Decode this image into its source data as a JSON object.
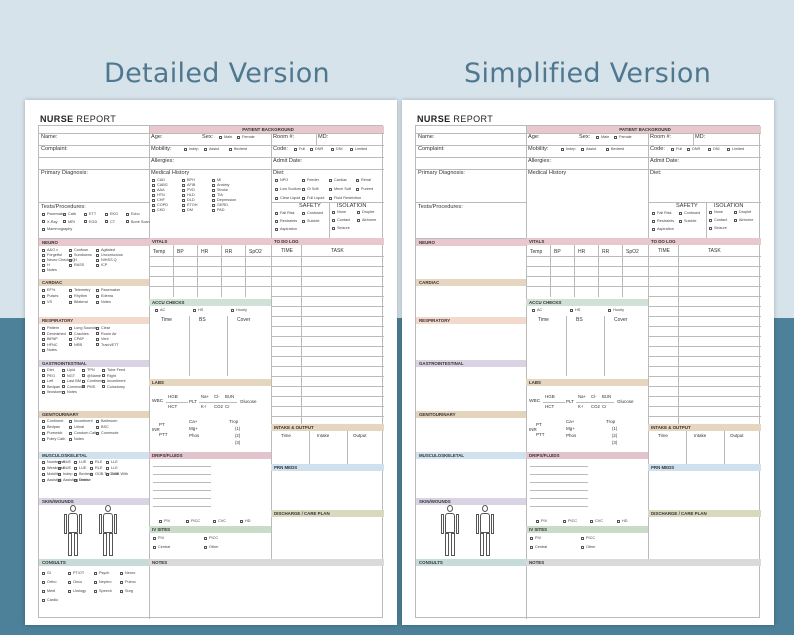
{
  "headings": {
    "detailed": "Detailed Version",
    "simplified": "Simplified Version"
  },
  "report": {
    "title_a": "NURSE",
    "title_b": "REPORT"
  },
  "bands": {
    "patient_background": "PATIENT BACKGROUND",
    "neuro": "NEURO",
    "cardiac": "CARDIAC",
    "respiratory": "RESPIRATORY",
    "gastrointestinal": "GASTROINTESTINAL",
    "genitourinary": "GENITOURINARY",
    "musculoskeletal": "MUSCULOSKELETAL",
    "skin_wounds": "SKIN/WOUNDS",
    "consults": "CONSULTS",
    "vitals": "VITALS",
    "to_do_log": "TO DO LOG",
    "accu_checks": "ACCU CHECKS",
    "labs": "LABS",
    "intake_output": "INTAKE & OUTPUT",
    "drips_fluids": "DRIPS/FLUIDS",
    "prn_meds": "PRN MEDS",
    "iv_sites": "IV SITES",
    "discharge": "DISCHARGE / CARE PLAN",
    "notes": "NOTES"
  },
  "fields": {
    "name": "Name:",
    "age": "Age:",
    "sex": "Sex:",
    "male": "Male",
    "female": "Female",
    "room": "Room #:",
    "md": "MD:",
    "complaint": "Complaint:",
    "mobility": "Mobility:",
    "indep": "Indep",
    "assist": "Assist",
    "bedrest": "Bedrest",
    "code": "Code:",
    "full": "Full",
    "dnr": "DNR",
    "dni": "DNI",
    "limited": "Limited",
    "allergies": "Allergies:",
    "admit_date": "Admit Date:",
    "primary_dx": "Primary Diagnosis:",
    "medical_history": "Medical History",
    "diet": "Diet:",
    "tests": "Tests/Procedures:",
    "safety": "SAFETY",
    "isolation": "ISOLATION"
  },
  "medical_history_items": [
    "CAD",
    "BPH",
    "MI",
    "CABG",
    "AFIB",
    "Anxiety",
    "AAA",
    "PVD",
    "Stroke",
    "HTN",
    "HLD",
    "TIA",
    "CHF",
    "DLD",
    "Depression",
    "COPD",
    "ETOH",
    "GERD",
    "CKD",
    "DM",
    "PAD"
  ],
  "diet_items": [
    "NPO",
    "Feeder",
    "Cardiac",
    "Renal",
    "Low Sodium",
    "Gi Soft",
    "Mech Soft",
    "Pureed",
    "Clear Liquid",
    "Full Liquid",
    "Fluid Restriction"
  ],
  "safety_items": [
    "Fall Risk",
    "Confused",
    "Restraints",
    "Suicide",
    "Aspiration"
  ],
  "isolation_items": [
    "None",
    "Droplet",
    "Contact",
    "Airborne",
    "Seizure"
  ],
  "tests_items": [
    "Pacemaker",
    "Cath",
    "ETT",
    "EKG",
    "Echo",
    "X-Ray",
    "MRI",
    "EGD",
    "CT",
    "Bone Scan",
    "Mammography"
  ],
  "neuro_items": [
    "A&O x",
    "Confuse",
    "Agitated",
    "Forgetful",
    "Sundowns",
    "Unconscious",
    "Neuro Checks Q",
    "H",
    "NIHSS Q",
    "H",
    "RASS",
    "ICP",
    "Notes"
  ],
  "cardiac_items": [
    "EF%",
    "Telemetry",
    "Pacemaker",
    "Pulses",
    "Rhythm",
    "Edema",
    "VS",
    "Bilateral",
    "Notes"
  ],
  "resp_items": [
    "Pattern",
    "Lung Sounds",
    "Clear",
    "Diminished",
    "Crackles",
    "Room Air",
    "BiPAP",
    "CPAP",
    "Vent",
    "HFNC",
    "NRB",
    "Trach/ETT",
    "Notes"
  ],
  "gi_items": [
    "Diet",
    "Lipid",
    "TPN",
    "Tube Feed",
    "PEG",
    "NGT",
    "@Name",
    "Right",
    "Left",
    "Last BM",
    "Continent",
    "Incontinent",
    "Bedpan",
    "Commode",
    "PMS",
    "Colostomy",
    "Ileostomy",
    "Notes"
  ],
  "gu_items": [
    "Continent",
    "Incontinent",
    "Bathroom",
    "Bedpan",
    "Urinal",
    "BSC",
    "Purewick",
    "Condom Cath",
    "Commode",
    "Foley Cath",
    "Notes"
  ],
  "msk_items": [
    "Numbness",
    "RUE",
    "LUE",
    "RLE",
    "LLE",
    "Weakness",
    "RUE",
    "LUE",
    "RLE",
    "LLE",
    "Mobility",
    "Indep",
    "Bedrest",
    "OOB To Chair",
    "OOB With",
    "Assist(s)",
    "Assisting Device",
    "Notes"
  ],
  "consult_items": [
    "GI",
    "PT/OT",
    "Psych",
    "Neuro",
    "Ortho",
    "Onco",
    "Nephro",
    "Pulmo",
    "Medi",
    "Urology",
    "Speech",
    "Surg",
    "Cardio"
  ],
  "vitals_cols": [
    "Temp",
    "BP",
    "HR",
    "RR",
    "SpO2"
  ],
  "todo_cols": [
    "TIME",
    "TASK"
  ],
  "accu_opts": [
    "AC",
    "HS",
    "Hourly"
  ],
  "accu_cols": [
    "Time",
    "BS",
    "Cover"
  ],
  "io_cols": [
    "Time",
    "Intake",
    "Output"
  ],
  "labs": {
    "wbc": "WBC",
    "hgb": "HGB",
    "hct": "HCT",
    "plt": "PLT",
    "na": "Na+",
    "k": "K+",
    "cl": "Cl-",
    "co2": "CO2",
    "bun": "BUN",
    "cr": "Cr",
    "glucose": "Glucose",
    "pt": "PT",
    "inr": "INR",
    "ptt": "PTT",
    "ca": "Ca+",
    "mg": "Mg+",
    "phos": "Phos",
    "trop": "Trop",
    "trop_1": "(1)",
    "trop_2": "(2)",
    "trop_3": "(3)"
  },
  "iv": {
    "piv": "PIV",
    "picc": "PICC",
    "central": "Central",
    "other": "Other"
  },
  "drip_sites": [
    "PIV",
    "PICC",
    "CVC",
    "HD"
  ]
}
